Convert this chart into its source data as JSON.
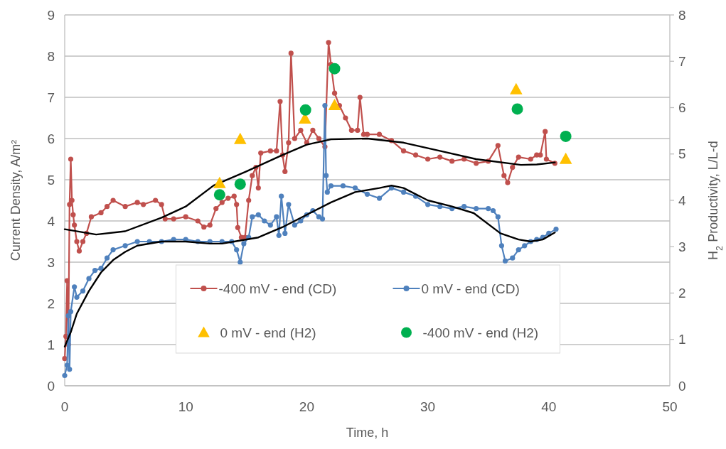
{
  "chart_data": {
    "type": "line",
    "xlabel": "Time, h",
    "ylabel": "Current Density, A/m²",
    "y2label": "H$_{2}$ Productivity, L/L-d",
    "xlim": [
      0,
      50
    ],
    "xticks": [
      0,
      10,
      20,
      30,
      40,
      50
    ],
    "ylim": [
      0,
      9
    ],
    "yticks": [
      0,
      1,
      2,
      3,
      4,
      5,
      6,
      7,
      8,
      9
    ],
    "y2lim": [
      0,
      8
    ],
    "y2ticks": [
      0,
      1,
      2,
      3,
      4,
      5,
      6,
      7,
      8
    ],
    "grid": "y",
    "legend": "bottom",
    "line_style": "solid",
    "series": [
      {
        "name": "-400 mV - end (CD)",
        "marker": "circle",
        "color": "#c0504d",
        "x": [
          0,
          0.1,
          0.2,
          0.3,
          0.4,
          0.5,
          0.6,
          0.7,
          0.8,
          1,
          1.2,
          1.5,
          1.8,
          2.2,
          3,
          3.5,
          4,
          5,
          6,
          6.5,
          7.5,
          8,
          8.3,
          9,
          10,
          11,
          11.5,
          12,
          12.5,
          13,
          13.5,
          14,
          14.2,
          14.3,
          14.6,
          14.9,
          15.2,
          15.5,
          15.8,
          16,
          16.2,
          17,
          17.5,
          17.8,
          18,
          18.2,
          18.5,
          18.7,
          19,
          19.5,
          20,
          20.5,
          21,
          21.5,
          21.8,
          22,
          22.3,
          22.7,
          23.2,
          23.7,
          24.2,
          24.4,
          24.7,
          25,
          26,
          27,
          28,
          29,
          30,
          31,
          32,
          33,
          34,
          35,
          35.8,
          36.3,
          36.6,
          37,
          37.5,
          38.5,
          39,
          39.3,
          39.7,
          39.8,
          40.5
        ],
        "values": [
          0.66,
          1.2,
          2.55,
          1.0,
          4.4,
          5.5,
          4.5,
          4.15,
          3.9,
          3.5,
          3.27,
          3.5,
          3.7,
          4.1,
          4.2,
          4.35,
          4.5,
          4.35,
          4.45,
          4.4,
          4.5,
          4.4,
          4.05,
          4.05,
          4.1,
          4.0,
          3.85,
          3.9,
          4.3,
          4.45,
          4.55,
          4.6,
          4.4,
          3.84,
          3.6,
          3.6,
          4.5,
          5.1,
          5.3,
          4.8,
          5.65,
          5.7,
          5.7,
          6.9,
          5.6,
          5.2,
          5.9,
          8.07,
          6.0,
          6.2,
          5.9,
          6.2,
          6.0,
          5.8,
          8.33,
          7.8,
          7.1,
          6.8,
          6.5,
          6.2,
          6.2,
          7.0,
          6.1,
          6.1,
          6.1,
          5.95,
          5.7,
          5.6,
          5.5,
          5.55,
          5.45,
          5.5,
          5.4,
          5.45,
          5.83,
          5.1,
          4.93,
          5.3,
          5.55,
          5.5,
          5.6,
          5.6,
          6.17,
          5.5,
          5.4
        ]
      },
      {
        "name": "0 mV - end (CD)",
        "marker": "circle",
        "color": "#4f81bd",
        "x": [
          0,
          0.2,
          0.3,
          0.4,
          0.5,
          0.8,
          1,
          1.5,
          2,
          2.5,
          3,
          3.5,
          4,
          5,
          6,
          7,
          8,
          9,
          10,
          11,
          12,
          13,
          13.8,
          14.2,
          14.5,
          14.8,
          15.2,
          15.5,
          16,
          16.5,
          17,
          17.5,
          17.7,
          17.9,
          18.2,
          18.5,
          19,
          19.5,
          20,
          20.5,
          21,
          21.3,
          21.5,
          21.6,
          21.7,
          22,
          23,
          24,
          25,
          26,
          27,
          28,
          29,
          30,
          31,
          32,
          33,
          34,
          35,
          35.4,
          35.8,
          36.1,
          36.4,
          37,
          37.5,
          38,
          38.5,
          39,
          39.5,
          40,
          40.6
        ],
        "values": [
          0.25,
          0.5,
          1.7,
          0.4,
          1.8,
          2.4,
          2.15,
          2.3,
          2.6,
          2.8,
          2.85,
          3.1,
          3.3,
          3.4,
          3.5,
          3.5,
          3.5,
          3.55,
          3.55,
          3.5,
          3.5,
          3.5,
          3.5,
          3.3,
          3.0,
          3.45,
          3.6,
          4.1,
          4.15,
          4.0,
          3.9,
          4.1,
          3.65,
          4.6,
          3.7,
          4.4,
          3.9,
          4.0,
          4.15,
          4.25,
          4.1,
          4.05,
          6.8,
          5.1,
          4.7,
          4.85,
          4.85,
          4.8,
          4.65,
          4.55,
          4.8,
          4.7,
          4.6,
          4.4,
          4.35,
          4.3,
          4.35,
          4.3,
          4.3,
          4.25,
          4.1,
          3.4,
          3.03,
          3.1,
          3.3,
          3.4,
          3.5,
          3.55,
          3.6,
          3.7,
          3.8
        ]
      },
      {
        "marker": "none",
        "color": "#000000",
        "x": [
          0,
          2.6,
          5,
          8,
          10,
          12.3,
          15,
          18,
          20,
          22,
          25,
          28,
          31,
          34,
          37.7,
          39,
          40.5
        ],
        "values": [
          3.8,
          3.67,
          3.75,
          4.08,
          4.35,
          4.86,
          5.2,
          5.6,
          5.85,
          5.98,
          6.0,
          5.9,
          5.7,
          5.5,
          5.36,
          5.37,
          5.42
        ]
      },
      {
        "marker": "none",
        "color": "#000000",
        "x": [
          0,
          0.5,
          1,
          2,
          3,
          4,
          5,
          6,
          8,
          10,
          12,
          13,
          14,
          16,
          18,
          20,
          22,
          24,
          26,
          27,
          28,
          30,
          32,
          33.8,
          36,
          37.5,
          38.5,
          39.5,
          40.5
        ],
        "values": [
          0.95,
          1.3,
          1.75,
          2.3,
          2.75,
          3.05,
          3.25,
          3.4,
          3.5,
          3.5,
          3.45,
          3.45,
          3.5,
          3.6,
          3.85,
          4.15,
          4.45,
          4.7,
          4.8,
          4.86,
          4.8,
          4.5,
          4.35,
          4.19,
          3.7,
          3.55,
          3.5,
          3.55,
          3.72
        ]
      },
      {
        "name": "0 mV - end (H2)",
        "type": "scatter",
        "marker": "triangle",
        "axis": "y2",
        "color": "#ffc000",
        "x": [
          12.8,
          14.5,
          19.85,
          22.3,
          37.3,
          41.4
        ],
        "values": [
          4.37,
          5.32,
          5.76,
          6.05,
          6.39,
          4.89
        ]
      },
      {
        "name": "-400 mV - end (H2)",
        "type": "scatter",
        "marker": "circle",
        "axis": "y2",
        "color": "#00b050",
        "x": [
          12.8,
          14.5,
          19.9,
          22.3,
          37.4,
          41.4
        ],
        "values": [
          4.12,
          4.35,
          5.95,
          6.84,
          5.97,
          5.38
        ]
      }
    ]
  }
}
